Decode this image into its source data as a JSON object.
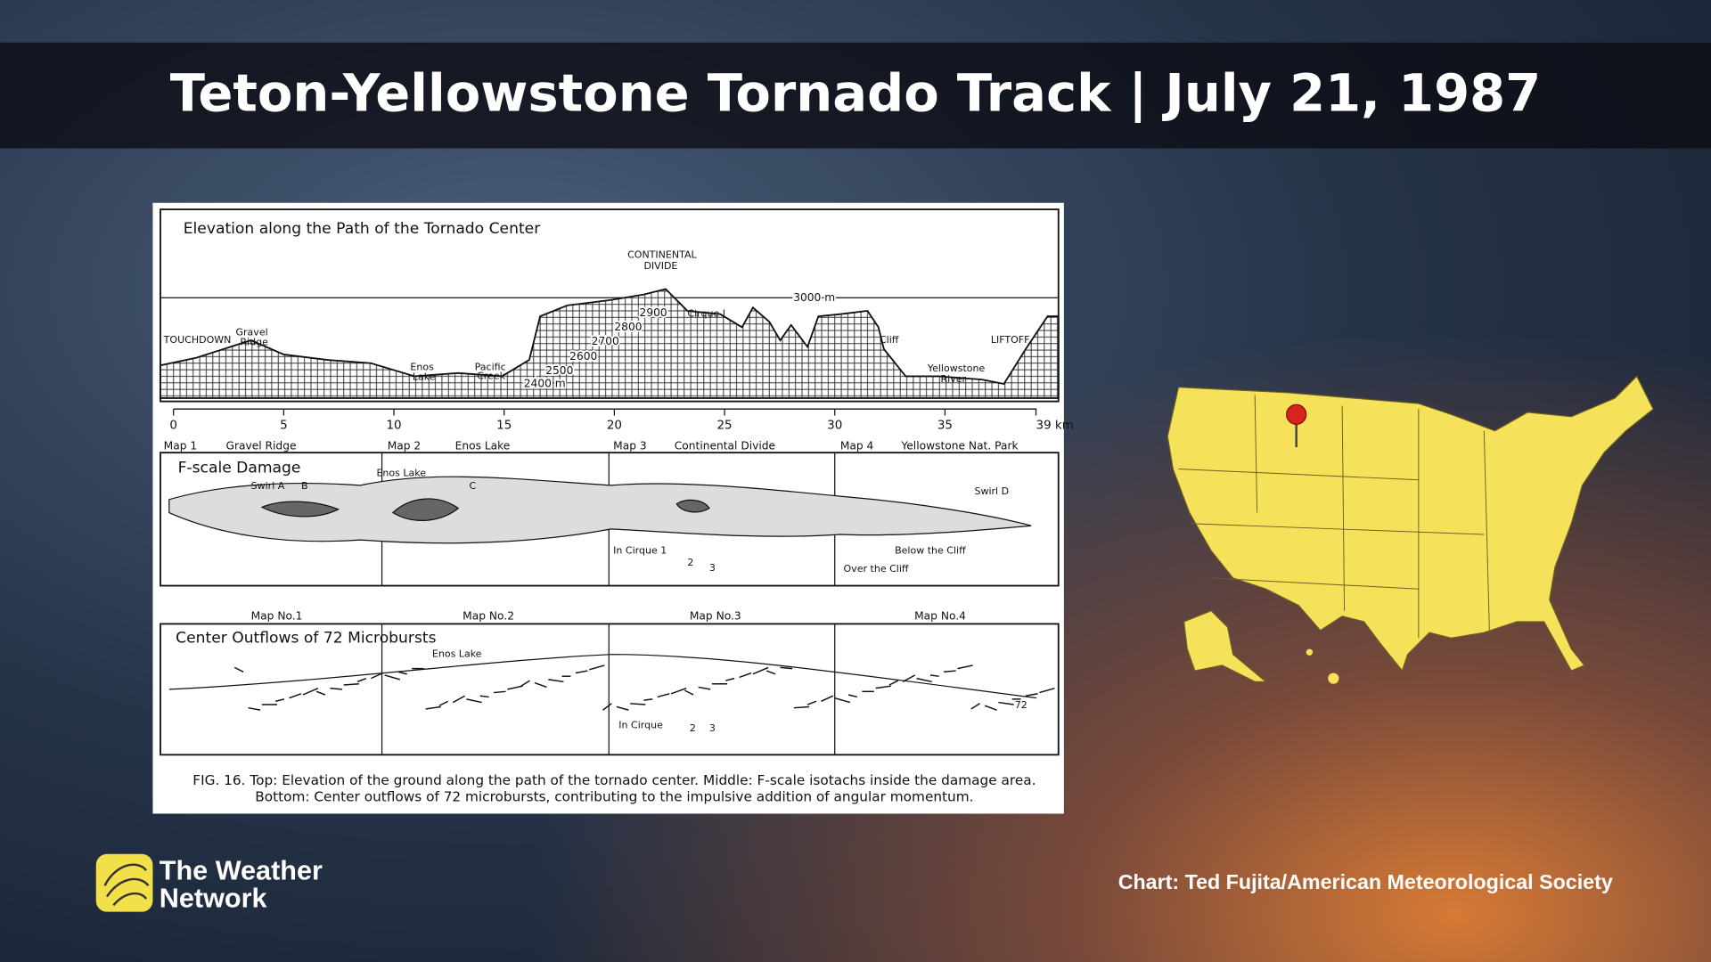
{
  "header": {
    "title": "Teton-Yellowstone Tornado Track | July 21, 1987"
  },
  "figure": {
    "elevation": {
      "title": "Elevation along the Path of the Tornado Center",
      "labels": [
        "CONTINENTAL",
        "DIVIDE",
        "TOUCHDOWN",
        "Gravel",
        "Ridge",
        "Enos",
        "Lake",
        "Pacific",
        "Creek",
        "Cirque I",
        "Cliff",
        "Yellowstone",
        "River",
        "LIFTOFF"
      ],
      "contours": [
        "3000 m",
        "2900",
        "2800",
        "2700",
        "2600",
        "2500",
        "2400 m"
      ],
      "km_ticks": [
        "0",
        "5",
        "10",
        "15",
        "20",
        "25",
        "30",
        "35",
        "39 km"
      ]
    },
    "maps": [
      "Map 1",
      "Gravel Ridge",
      "Map 2",
      "Enos Lake",
      "Map 3",
      "Continental Divide",
      "Map 4",
      "Yellowstone Nat. Park"
    ],
    "damage": {
      "title": "F-scale Damage",
      "labels": [
        "Swirl A",
        "B",
        "Enos Lake",
        "C",
        "Swirl D",
        "In Cirque 1",
        "2",
        "3",
        "Below the Cliff",
        "Over the Cliff"
      ]
    },
    "outflows": {
      "map_labels": [
        "Map No.1",
        "Map No.2",
        "Map No.3",
        "Map No.4"
      ],
      "title": "Center Outflows of 72 Microbursts",
      "labels": [
        "Enos Lake",
        "In Cirque",
        "2",
        "3",
        "72"
      ]
    },
    "caption": [
      "FIG. 16. Top: Elevation of the ground along the path of the tornado center. Middle: F-scale isotachs inside the damage area.",
      "Bottom: Center outflows of 72 microbursts, contributing to the impulsive addition of angular momentum."
    ]
  },
  "credit": "Chart: Ted Fujita/American Meteorological Society",
  "logo": [
    "The Weather",
    "Network"
  ]
}
